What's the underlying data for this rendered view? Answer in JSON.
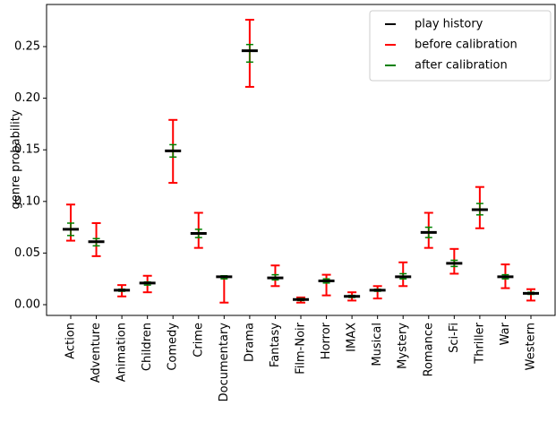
{
  "chart_data": {
    "type": "errorbar",
    "ylabel": "genre probability",
    "categories": [
      "Action",
      "Adventure",
      "Animation",
      "Children",
      "Comedy",
      "Crime",
      "Documentary",
      "Drama",
      "Fantasy",
      "Film-Noir",
      "Horror",
      "IMAX",
      "Musical",
      "Mystery",
      "Romance",
      "Sci-Fi",
      "Thriller",
      "War",
      "Western"
    ],
    "series": [
      {
        "name": "play history",
        "color": "#000000",
        "values": [
          0.073,
          0.061,
          0.014,
          0.021,
          0.149,
          0.069,
          0.027,
          0.246,
          0.026,
          0.005,
          0.023,
          0.008,
          0.014,
          0.027,
          0.07,
          0.04,
          0.092,
          0.027,
          0.011
        ]
      },
      {
        "name": "before calibration",
        "color": "#ff0000",
        "low": [
          0.062,
          0.047,
          0.008,
          0.012,
          0.118,
          0.055,
          0.002,
          0.211,
          0.018,
          0.002,
          0.009,
          0.004,
          0.006,
          0.018,
          0.055,
          0.03,
          0.074,
          0.016,
          0.004
        ],
        "high": [
          0.097,
          0.079,
          0.019,
          0.028,
          0.179,
          0.089,
          0.027,
          0.276,
          0.038,
          0.007,
          0.029,
          0.012,
          0.018,
          0.041,
          0.089,
          0.054,
          0.114,
          0.039,
          0.015
        ]
      },
      {
        "name": "after calibration",
        "color": "#008000",
        "low": [
          0.067,
          0.057,
          0.013,
          0.019,
          0.143,
          0.065,
          0.025,
          0.235,
          0.024,
          0.004,
          0.021,
          0.007,
          0.013,
          0.025,
          0.065,
          0.037,
          0.087,
          0.025,
          0.01
        ],
        "high": [
          0.079,
          0.064,
          0.015,
          0.022,
          0.155,
          0.073,
          0.028,
          0.252,
          0.029,
          0.006,
          0.025,
          0.009,
          0.015,
          0.03,
          0.075,
          0.043,
          0.098,
          0.029,
          0.012
        ]
      }
    ],
    "ylim": [
      -0.0104,
      0.2908
    ],
    "yticks": [
      {
        "value": 0,
        "label": "0.00"
      },
      {
        "value": 0.05,
        "label": "0.05"
      },
      {
        "value": 0.1,
        "label": "0.10"
      },
      {
        "value": 0.15,
        "label": "0.15"
      },
      {
        "value": 0.2,
        "label": "0.20"
      },
      {
        "value": 0.25,
        "label": "0.25"
      }
    ],
    "legend": "upper right"
  }
}
